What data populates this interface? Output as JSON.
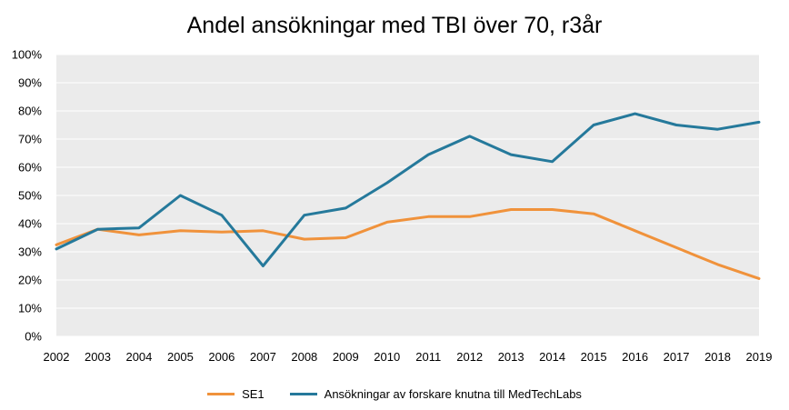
{
  "chart_data": {
    "type": "line",
    "title": "Andel ansökningar med TBI över 70, r3år",
    "xlabel": "",
    "ylabel": "",
    "x": [
      "2002",
      "2003",
      "2004",
      "2005",
      "2006",
      "2007",
      "2008",
      "2009",
      "2010",
      "2011",
      "2012",
      "2013",
      "2014",
      "2015",
      "2016",
      "2017",
      "2018",
      "2019"
    ],
    "ylim": [
      0,
      100
    ],
    "ytick_labels": [
      "0%",
      "10%",
      "20%",
      "30%",
      "40%",
      "50%",
      "60%",
      "70%",
      "80%",
      "90%",
      "100%"
    ],
    "grid": true,
    "legend_position": "bottom",
    "plot_background": "#ebebeb",
    "series": [
      {
        "name": "SE1",
        "color": "#f0923b",
        "values": [
          32.5,
          38.0,
          36.0,
          37.5,
          37.0,
          37.5,
          34.5,
          35.0,
          40.5,
          42.5,
          42.5,
          45.0,
          45.0,
          43.5,
          37.5,
          31.5,
          25.5,
          20.5
        ]
      },
      {
        "name": "Ansökningar av forskare knutna till MedTechLabs",
        "color": "#25799b",
        "values": [
          31.0,
          38.0,
          38.5,
          50.0,
          43.0,
          25.0,
          43.0,
          45.5,
          54.5,
          64.5,
          71.0,
          64.5,
          62.0,
          75.0,
          79.0,
          75.0,
          73.5,
          76.0
        ]
      }
    ]
  }
}
